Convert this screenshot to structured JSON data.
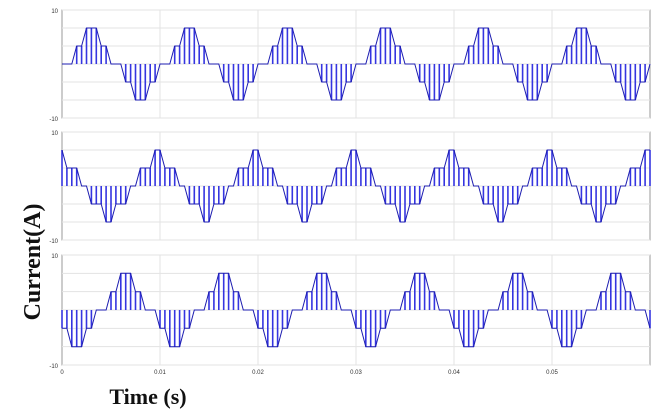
{
  "chart_data": [
    {
      "type": "line",
      "panel": "top",
      "title": "",
      "xlabel": "",
      "ylabel": "",
      "ylim": [
        -3,
        3
      ],
      "yticks": [
        "10",
        "",
        "",
        "",
        "",
        "",
        "-10"
      ],
      "xlim": [
        0,
        0.06
      ],
      "grid": true,
      "waveform": "stepped six-step phase current (bar-sampled)",
      "period": 0.01,
      "phase_deg": 0,
      "levels": [
        0,
        1,
        2,
        1,
        0,
        -1,
        -2,
        -1
      ],
      "color": "#3535e0"
    },
    {
      "type": "line",
      "panel": "middle",
      "title": "",
      "xlabel": "",
      "ylabel": "",
      "ylim": [
        -3,
        3
      ],
      "yticks": [
        "10",
        "",
        "",
        "",
        "",
        "",
        "-10"
      ],
      "xlim": [
        0,
        0.06
      ],
      "grid": true,
      "waveform": "stepped six-step phase current (bar-sampled)",
      "period": 0.01,
      "phase_deg": 120,
      "levels": [
        0,
        1,
        2,
        1,
        0,
        -1,
        -2,
        -1
      ],
      "color": "#3535e0"
    },
    {
      "type": "line",
      "panel": "bottom",
      "title": "",
      "xlabel": "Time (s)",
      "ylabel": "Current(A)",
      "ylim": [
        -3,
        3
      ],
      "yticks": [
        "10",
        "",
        "",
        "",
        "",
        "",
        "-10"
      ],
      "xlim": [
        0,
        0.06
      ],
      "xticks": [
        "0",
        "0.01",
        "0.02",
        "0.03",
        "0.04",
        "0.05"
      ],
      "grid": true,
      "waveform": "stepped six-step phase current (bar-sampled)",
      "period": 0.01,
      "phase_deg": 240,
      "levels": [
        0,
        1,
        2,
        1,
        0,
        -1,
        -2,
        -1
      ],
      "color": "#3535e0"
    }
  ],
  "labels": {
    "ylabel": "Current(A)",
    "xlabel": "Time (s)"
  }
}
